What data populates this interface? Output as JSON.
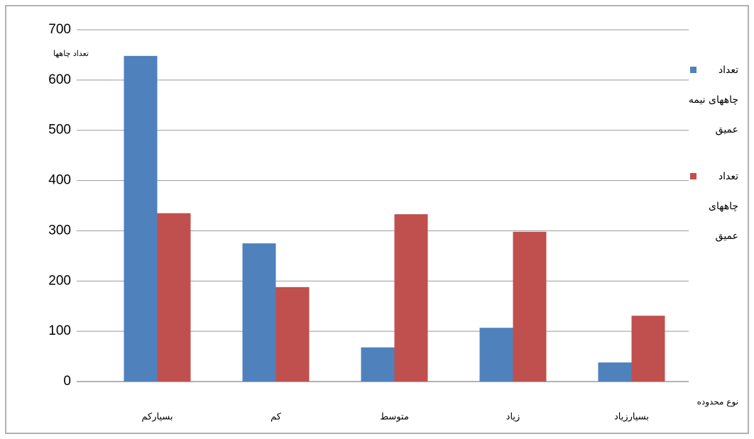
{
  "chart_data": {
    "type": "bar",
    "ylabel": "تعداد چاهها",
    "xlabel": "نوع محدوده",
    "categories": [
      "بسیارکم",
      "کم",
      "متوسط",
      "زیاد",
      "بسیارزیاد"
    ],
    "series": [
      {
        "name": "تعداد چاههای نیمه عمیق",
        "color": "#4f81bd",
        "values": [
          648,
          275,
          68,
          107,
          38
        ]
      },
      {
        "name": "تعداد چاههای عمیق",
        "color": "#c0504d",
        "values": [
          335,
          188,
          333,
          298,
          131
        ]
      }
    ],
    "ylim": [
      0,
      700
    ],
    "yticks": [
      0,
      100,
      200,
      300,
      400,
      500,
      600,
      700
    ],
    "grid": true,
    "legend": "right"
  }
}
